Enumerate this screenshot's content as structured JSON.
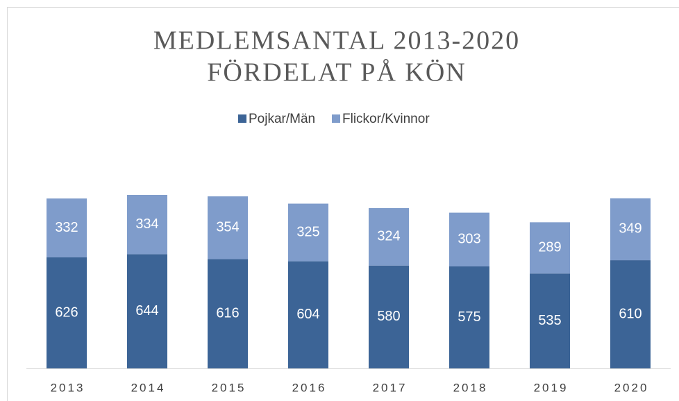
{
  "chart_data": {
    "type": "stacked_bar",
    "title": [
      "MEDLEMSANTAL 2013-2020",
      "FÖRDELAT PÅ KÖN"
    ],
    "categories": [
      "2013",
      "2014",
      "2015",
      "2016",
      "2017",
      "2018",
      "2019",
      "2020"
    ],
    "series": [
      {
        "name": "Pojkar/Män",
        "color": "#3c6496",
        "values": [
          626,
          644,
          616,
          604,
          580,
          575,
          535,
          610
        ]
      },
      {
        "name": "Flickor/Kvinnor",
        "color": "#7f9ccb",
        "values": [
          332,
          334,
          354,
          325,
          324,
          303,
          289,
          349
        ]
      }
    ],
    "legend": "top"
  }
}
